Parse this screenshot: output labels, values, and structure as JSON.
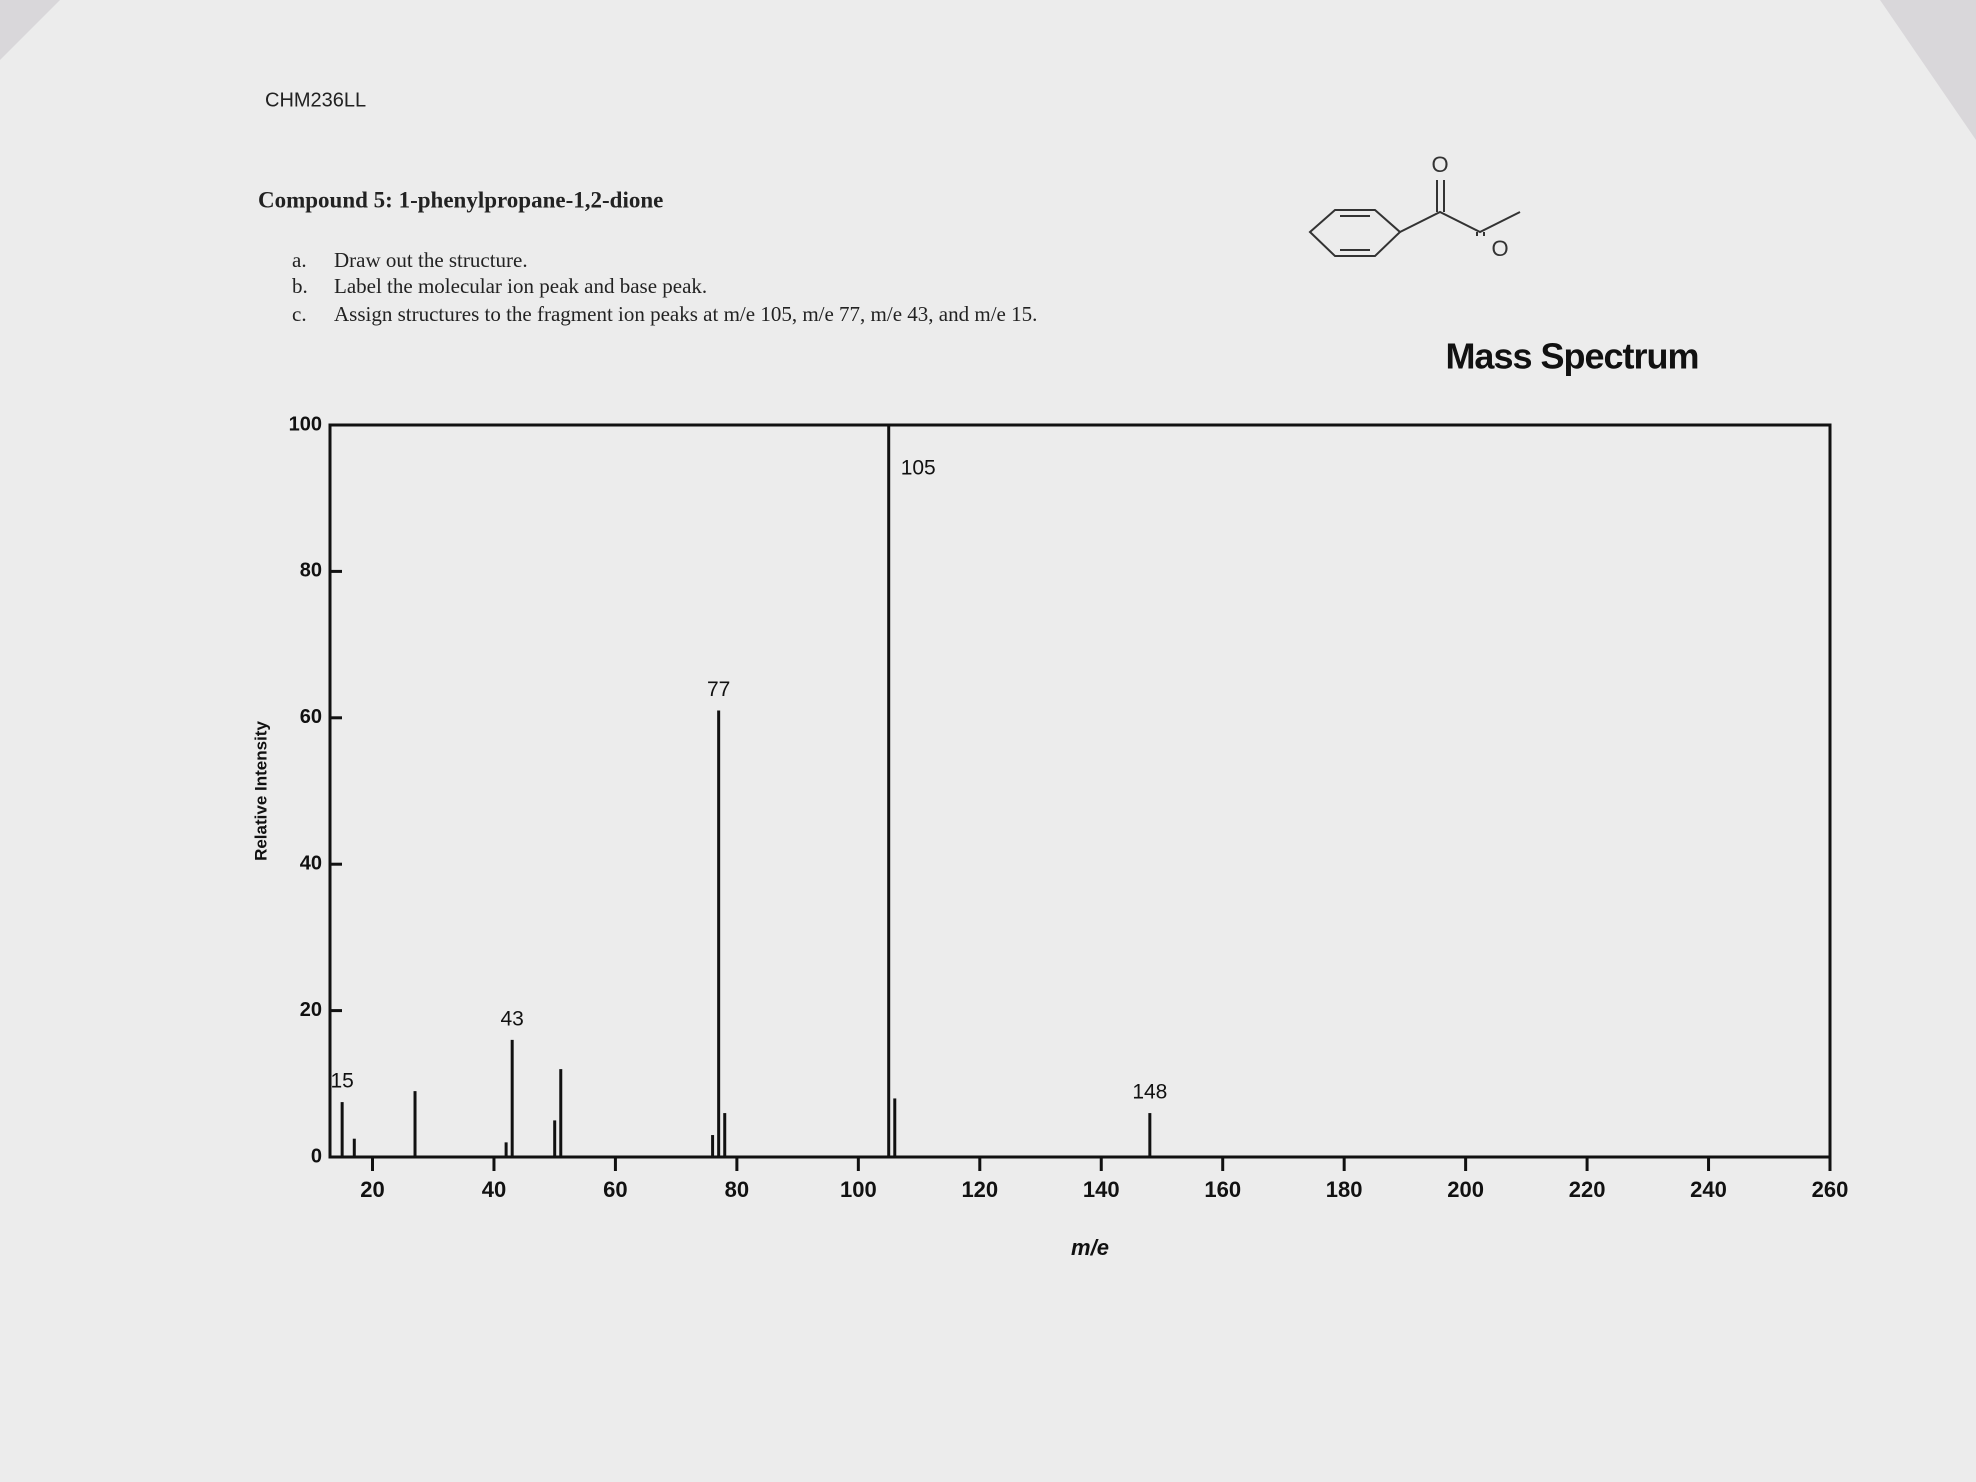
{
  "header": {
    "course": "CHM236LL"
  },
  "compound": {
    "title": "Compound 5: 1-phenylpropane-1,2-dione"
  },
  "questions": [
    {
      "label": "a.",
      "text": "Draw out the structure."
    },
    {
      "label": "b.",
      "text": "Label the molecular ion peak and base peak."
    },
    {
      "label": "c.",
      "text": "Assign structures to the fragment ion peaks at m/e 105, m/e 77, m/e 43, and m/e 15."
    }
  ],
  "structure": {
    "atoms": [
      "O",
      "O"
    ]
  },
  "chart_data": {
    "type": "stem",
    "title": "Mass Spectrum",
    "x_label": "m/e",
    "y_label": "Relative Intensity",
    "x": [
      15,
      17,
      27,
      42,
      43,
      50,
      51,
      76,
      77,
      78,
      105,
      106,
      148
    ],
    "values": [
      7.5,
      2.5,
      9,
      2,
      16,
      5,
      12,
      3,
      61,
      6,
      100,
      8,
      6
    ],
    "peak_labels": [
      15,
      43,
      77,
      105,
      148
    ],
    "color": "#111111",
    "xlim": [
      13,
      260
    ],
    "xticks": [
      20,
      40,
      60,
      80,
      100,
      120,
      140,
      160,
      180,
      200,
      220,
      240,
      260
    ],
    "ylim": [
      0,
      100
    ],
    "yticks": [
      0,
      20,
      40,
      60,
      80,
      100
    ]
  }
}
